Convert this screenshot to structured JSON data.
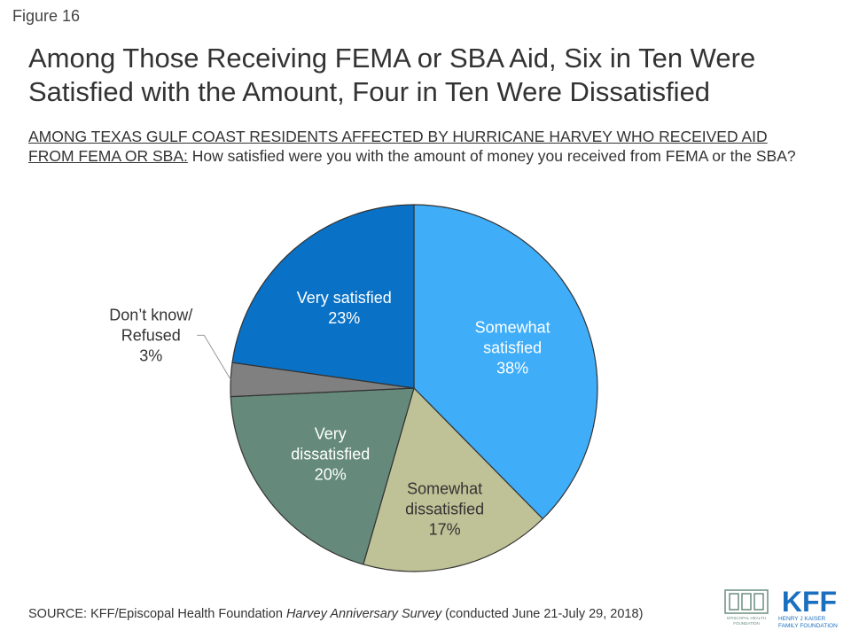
{
  "figure_label": "Figure 16",
  "chart_data": {
    "type": "pie",
    "title": "Among Those Receiving FEMA or SBA Aid, Six in Ten Were Satisfied with the Amount, Four in Ten Were Dissatisfied",
    "subtitle_lead": "AMONG TEXAS GULF COAST RESIDENTS AFFECTED BY HURRICANE HARVEY WHO RECEIVED AID FROM FEMA OR SBA:",
    "subtitle_question": " How satisfied were you with the amount of money you received from FEMA or the SBA?",
    "slices": [
      {
        "label_lines": [
          "Somewhat",
          "satisfied"
        ],
        "value": 38,
        "value_label": "38%",
        "color": "#3fadf8",
        "text_color": "#ffffff"
      },
      {
        "label_lines": [
          "Somewhat",
          "dissatisfied"
        ],
        "value": 17,
        "value_label": "17%",
        "color": "#bfc196",
        "text_color": "#333333"
      },
      {
        "label_lines": [
          "Very",
          "dissatisfied"
        ],
        "value": 20,
        "value_label": "20%",
        "color": "#658a7b",
        "text_color": "#ffffff"
      },
      {
        "label_lines": [
          "Don’t know/",
          "Refused"
        ],
        "value": 3,
        "value_label": "3%",
        "color": "#808080",
        "text_color": "#333333",
        "outside": true
      },
      {
        "label_lines": [
          "Very satisfied"
        ],
        "value": 23,
        "value_label": "23%",
        "color": "#0a72c6",
        "text_color": "#ffffff"
      }
    ]
  },
  "source": {
    "prefix": "SOURCE: KFF/Episcopal Health Foundation ",
    "survey": "Harvey Anniversary Survey",
    "suffix": " (conducted June 21-July 29, 2018)"
  },
  "logos": {
    "ehf_line1": "EPISCOPAL HEALTH",
    "ehf_line2": "FOUNDATION",
    "kff_mark": "KFF",
    "kff_line1": "HENRY J KAISER",
    "kff_line2": "FAMILY FOUNDATION"
  }
}
